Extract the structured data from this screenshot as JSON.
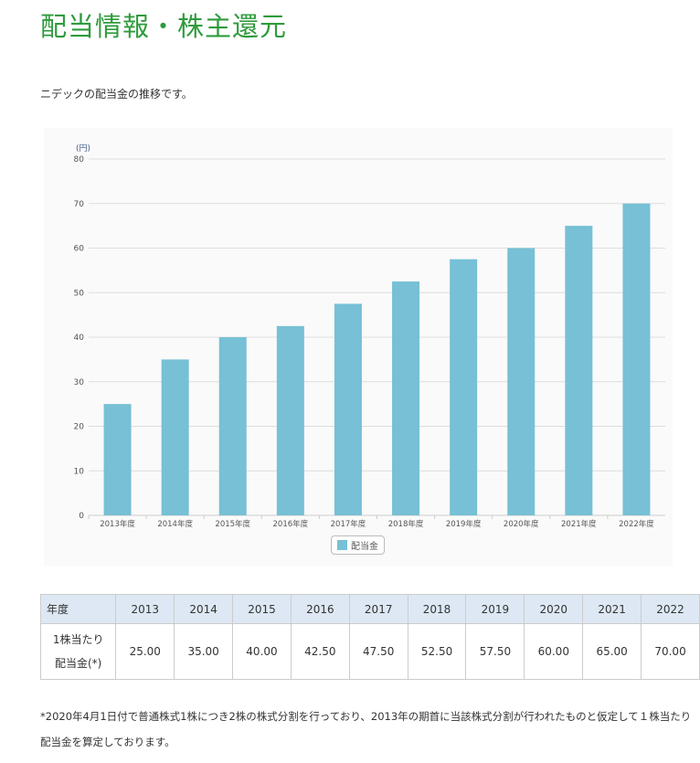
{
  "title": "配当情報・株主還元",
  "intro": "ニデックの配当金の推移です。",
  "chart_data": {
    "type": "bar",
    "title": "",
    "ylabel": "(円)",
    "xlabel": "",
    "ylim": [
      0,
      80
    ],
    "yticks": [
      0,
      10,
      20,
      30,
      40,
      50,
      60,
      70,
      80
    ],
    "grid": true,
    "legend": "bottom-center",
    "categories": [
      "2013年度",
      "2014年度",
      "2015年度",
      "2016年度",
      "2017年度",
      "2018年度",
      "2019年度",
      "2020年度",
      "2021年度",
      "2022年度"
    ],
    "series": [
      {
        "name": "配当金",
        "color": "#77c0d5",
        "values": [
          25,
          35,
          40,
          42.5,
          47.5,
          52.5,
          57.5,
          60,
          65,
          70
        ]
      }
    ]
  },
  "table": {
    "header_label": "年度",
    "years": [
      "2013",
      "2014",
      "2015",
      "2016",
      "2017",
      "2018",
      "2019",
      "2020",
      "2021",
      "2022"
    ],
    "row_label_1": "1株当たり",
    "row_label_2": "配当金(*)",
    "values": [
      "25.00",
      "35.00",
      "40.00",
      "42.50",
      "47.50",
      "52.50",
      "57.50",
      "60.00",
      "65.00",
      "70.00"
    ]
  },
  "note": "*2020年4月1日付で普通株式1株につき2株の株式分割を行っており、2013年の期首に当該株式分割が行われたものと仮定して１株当たり配当金を算定しております。"
}
